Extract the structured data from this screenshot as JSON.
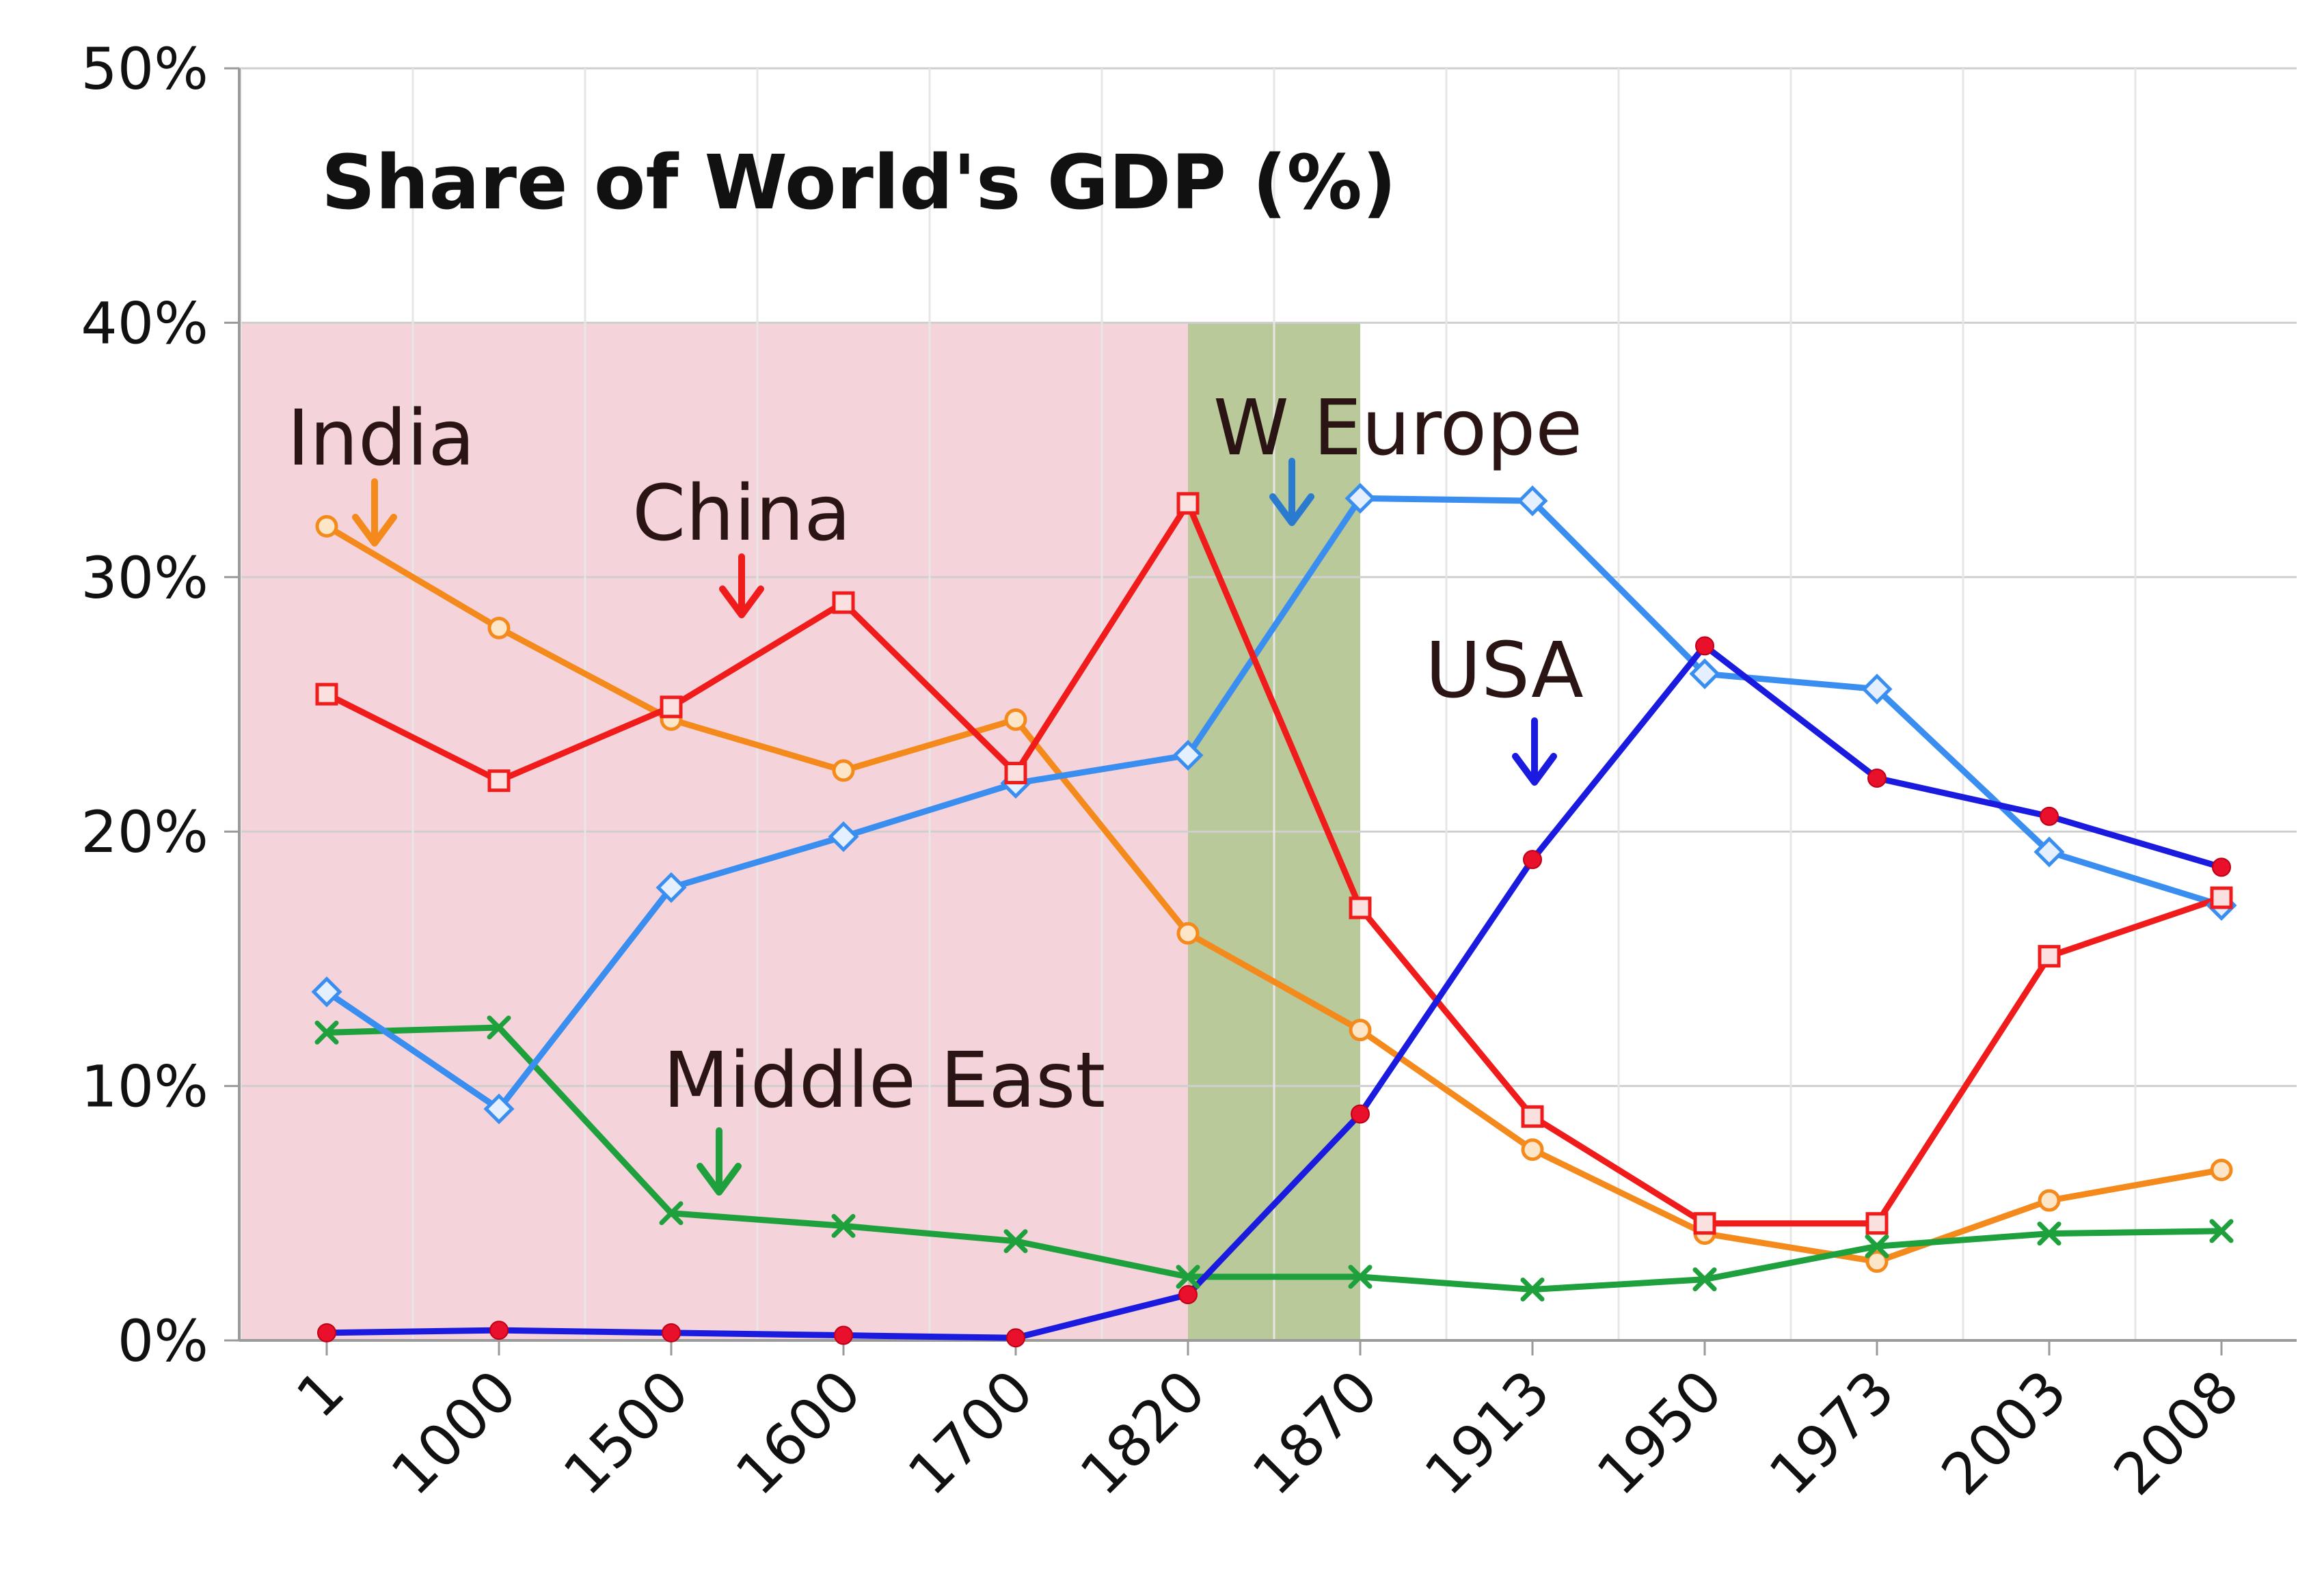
{
  "chart_data": {
    "type": "line",
    "title": "Share of World's GDP (%)",
    "xlabel": "",
    "ylabel": "",
    "categories": [
      "1",
      "1000",
      "1500",
      "1600",
      "1700",
      "1820",
      "1870",
      "1913",
      "1950",
      "1973",
      "2003",
      "2008"
    ],
    "ylim": [
      0,
      50
    ],
    "yticks": [
      0,
      10,
      20,
      30,
      40,
      50
    ],
    "ytick_labels": [
      "0%",
      "10%",
      "20%",
      "30%",
      "40%",
      "50%"
    ],
    "grid": true,
    "legend": "none (series labelled by annotations with arrows)",
    "shaded_regions": [
      {
        "from": "1",
        "to": "1820",
        "ymax": 40,
        "color": "#f5d3da"
      },
      {
        "from": "1820",
        "to": "1870",
        "ymax": 40,
        "color": "#b9c99a"
      }
    ],
    "series": [
      {
        "name": "India",
        "color": "#f48a1c",
        "marker": "circle-open",
        "values": [
          32.0,
          28.0,
          24.4,
          22.4,
          24.4,
          16.0,
          12.2,
          7.5,
          4.2,
          3.1,
          5.5,
          6.7
        ]
      },
      {
        "name": "China",
        "color": "#f01c1c",
        "marker": "square-open",
        "values": [
          25.4,
          22.0,
          24.9,
          29.0,
          22.3,
          32.9,
          17.0,
          8.8,
          4.6,
          4.6,
          15.1,
          17.4
        ]
      },
      {
        "name": "W Europe",
        "color": "#3a8ef0",
        "marker": "diamond-open",
        "values": [
          13.7,
          9.1,
          17.8,
          19.8,
          21.9,
          23.0,
          33.1,
          33.0,
          26.2,
          25.6,
          19.2,
          17.1
        ]
      },
      {
        "name": "USA",
        "color": "#1b1be0",
        "marker": "dot-red",
        "values": [
          0.3,
          0.4,
          0.3,
          0.2,
          0.1,
          1.8,
          8.9,
          18.9,
          27.3,
          22.1,
          20.6,
          18.6
        ]
      },
      {
        "name": "Middle East",
        "color": "#1ea03c",
        "marker": "cross",
        "values": [
          12.1,
          12.3,
          5.0,
          4.5,
          3.9,
          2.5,
          2.5,
          2.0,
          2.4,
          3.7,
          4.2,
          4.3
        ]
      }
    ],
    "annotations": [
      {
        "text": "India",
        "series": "India",
        "arrow_color": "#f48a1c"
      },
      {
        "text": "China",
        "series": "China",
        "arrow_color": "#f01c1c"
      },
      {
        "text": "W Europe",
        "series": "W Europe",
        "arrow_color": "#2a7ad0"
      },
      {
        "text": "USA",
        "series": "USA",
        "arrow_color": "#1b1be0"
      },
      {
        "text": "Middle East",
        "series": "Middle East",
        "arrow_color": "#1ea03c"
      }
    ]
  }
}
